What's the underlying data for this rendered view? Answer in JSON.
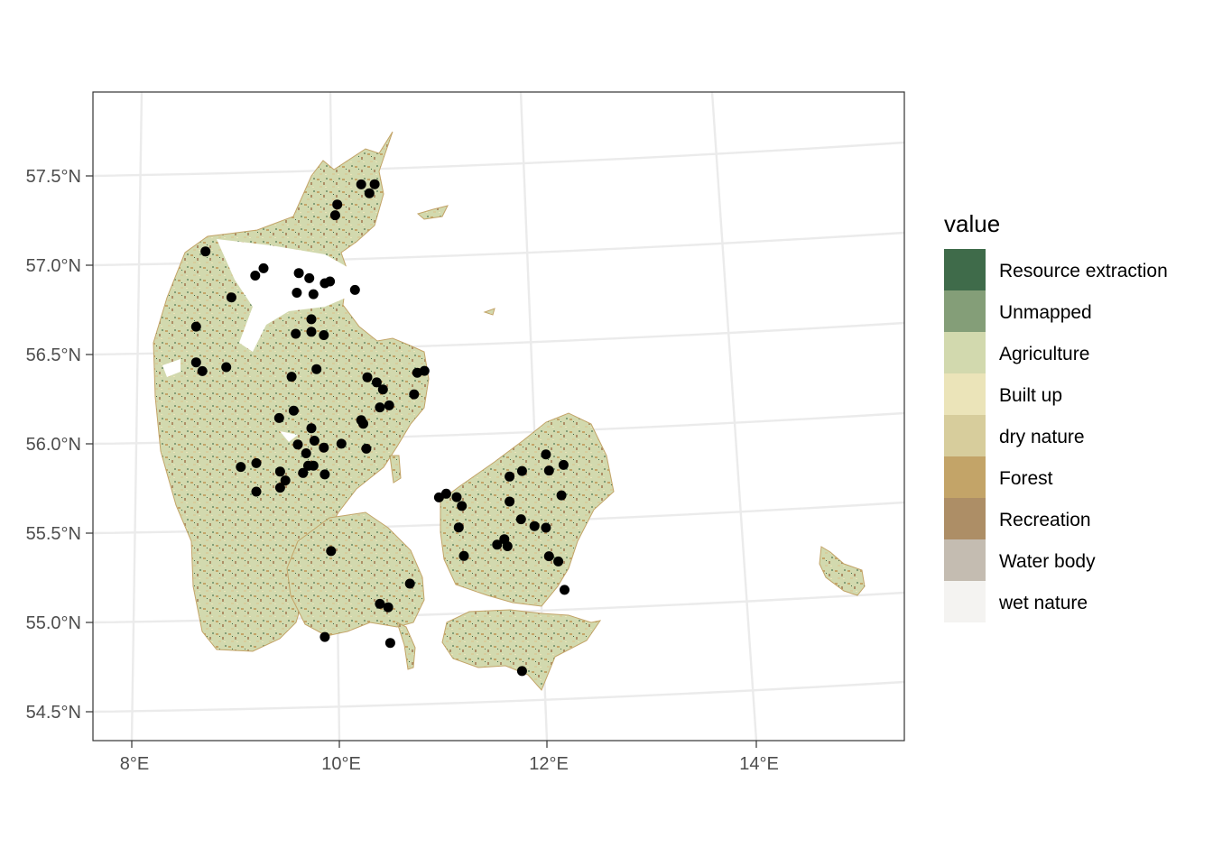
{
  "map": {
    "x_axis_labels": [
      "8°E",
      "10°E",
      "12°E",
      "14°E"
    ],
    "y_axis_labels": [
      "57.5°N",
      "57.0°N",
      "56.5°N",
      "56.0°N",
      "55.5°N",
      "55.0°N",
      "54.5°N"
    ]
  },
  "legend": {
    "title": "value",
    "items": [
      {
        "label": "Resource extraction",
        "color": "#3f6b4a"
      },
      {
        "label": "Unmapped",
        "color": "#849e78"
      },
      {
        "label": "Agriculture",
        "color": "#d2d9ae"
      },
      {
        "label": "Built up",
        "color": "#ebe4b9"
      },
      {
        "label": "dry nature",
        "color": "#d7cd9c"
      },
      {
        "label": "Forest",
        "color": "#c3a468"
      },
      {
        "label": "Recreation",
        "color": "#ad8e66"
      },
      {
        "label": "Water body",
        "color": "#c4bcb1"
      },
      {
        "label": "wet nature",
        "color": "#f4f3f1"
      }
    ]
  },
  "points": [
    [
      8.71,
      57.07
    ],
    [
      10.21,
      57.43
    ],
    [
      10.34,
      57.43
    ],
    [
      10.29,
      57.38
    ],
    [
      9.98,
      57.32
    ],
    [
      9.96,
      57.26
    ],
    [
      9.19,
      56.93
    ],
    [
      9.27,
      56.97
    ],
    [
      9.61,
      56.94
    ],
    [
      9.71,
      56.91
    ],
    [
      9.86,
      56.88
    ],
    [
      9.91,
      56.89
    ],
    [
      8.96,
      56.81
    ],
    [
      9.59,
      56.83
    ],
    [
      9.75,
      56.82
    ],
    [
      10.15,
      56.84
    ],
    [
      8.62,
      56.65
    ],
    [
      9.73,
      56.68
    ],
    [
      9.58,
      56.6
    ],
    [
      9.73,
      56.61
    ],
    [
      9.85,
      56.59
    ],
    [
      8.62,
      56.45
    ],
    [
      8.68,
      56.4
    ],
    [
      8.91,
      56.42
    ],
    [
      9.78,
      56.4
    ],
    [
      9.54,
      56.36
    ],
    [
      10.75,
      56.37
    ],
    [
      10.82,
      56.38
    ],
    [
      10.27,
      56.35
    ],
    [
      10.36,
      56.32
    ],
    [
      10.42,
      56.28
    ],
    [
      10.72,
      56.25
    ],
    [
      10.48,
      56.19
    ],
    [
      10.39,
      56.18
    ],
    [
      9.56,
      56.17
    ],
    [
      9.42,
      56.13
    ],
    [
      10.21,
      56.11
    ],
    [
      10.23,
      56.09
    ],
    [
      9.73,
      56.07
    ],
    [
      9.6,
      55.98
    ],
    [
      9.76,
      56.0
    ],
    [
      10.02,
      55.98
    ],
    [
      9.85,
      55.96
    ],
    [
      10.26,
      55.95
    ],
    [
      9.68,
      55.93
    ],
    [
      9.2,
      55.88
    ],
    [
      9.05,
      55.86
    ],
    [
      9.7,
      55.86
    ],
    [
      9.75,
      55.86
    ],
    [
      9.43,
      55.83
    ],
    [
      9.65,
      55.82
    ],
    [
      9.86,
      55.81
    ],
    [
      9.48,
      55.78
    ],
    [
      9.43,
      55.74
    ],
    [
      9.2,
      55.72
    ],
    [
      11.99,
      55.9
    ],
    [
      12.16,
      55.84
    ],
    [
      11.76,
      55.81
    ],
    [
      12.02,
      55.81
    ],
    [
      11.64,
      55.78
    ],
    [
      11.03,
      55.69
    ],
    [
      10.96,
      55.67
    ],
    [
      11.13,
      55.67
    ],
    [
      12.14,
      55.67
    ],
    [
      11.18,
      55.62
    ],
    [
      11.64,
      55.64
    ],
    [
      11.75,
      55.54
    ],
    [
      11.88,
      55.5
    ],
    [
      11.99,
      55.49
    ],
    [
      11.15,
      55.5
    ],
    [
      11.59,
      55.43
    ],
    [
      11.52,
      55.4
    ],
    [
      11.62,
      55.39
    ],
    [
      12.02,
      55.33
    ],
    [
      12.11,
      55.3
    ],
    [
      9.92,
      55.38
    ],
    [
      11.2,
      55.34
    ],
    [
      10.68,
      55.19
    ],
    [
      12.17,
      55.14
    ],
    [
      10.39,
      55.08
    ],
    [
      10.47,
      55.06
    ],
    [
      9.86,
      54.9
    ],
    [
      10.49,
      54.86
    ],
    [
      11.76,
      54.69
    ]
  ]
}
